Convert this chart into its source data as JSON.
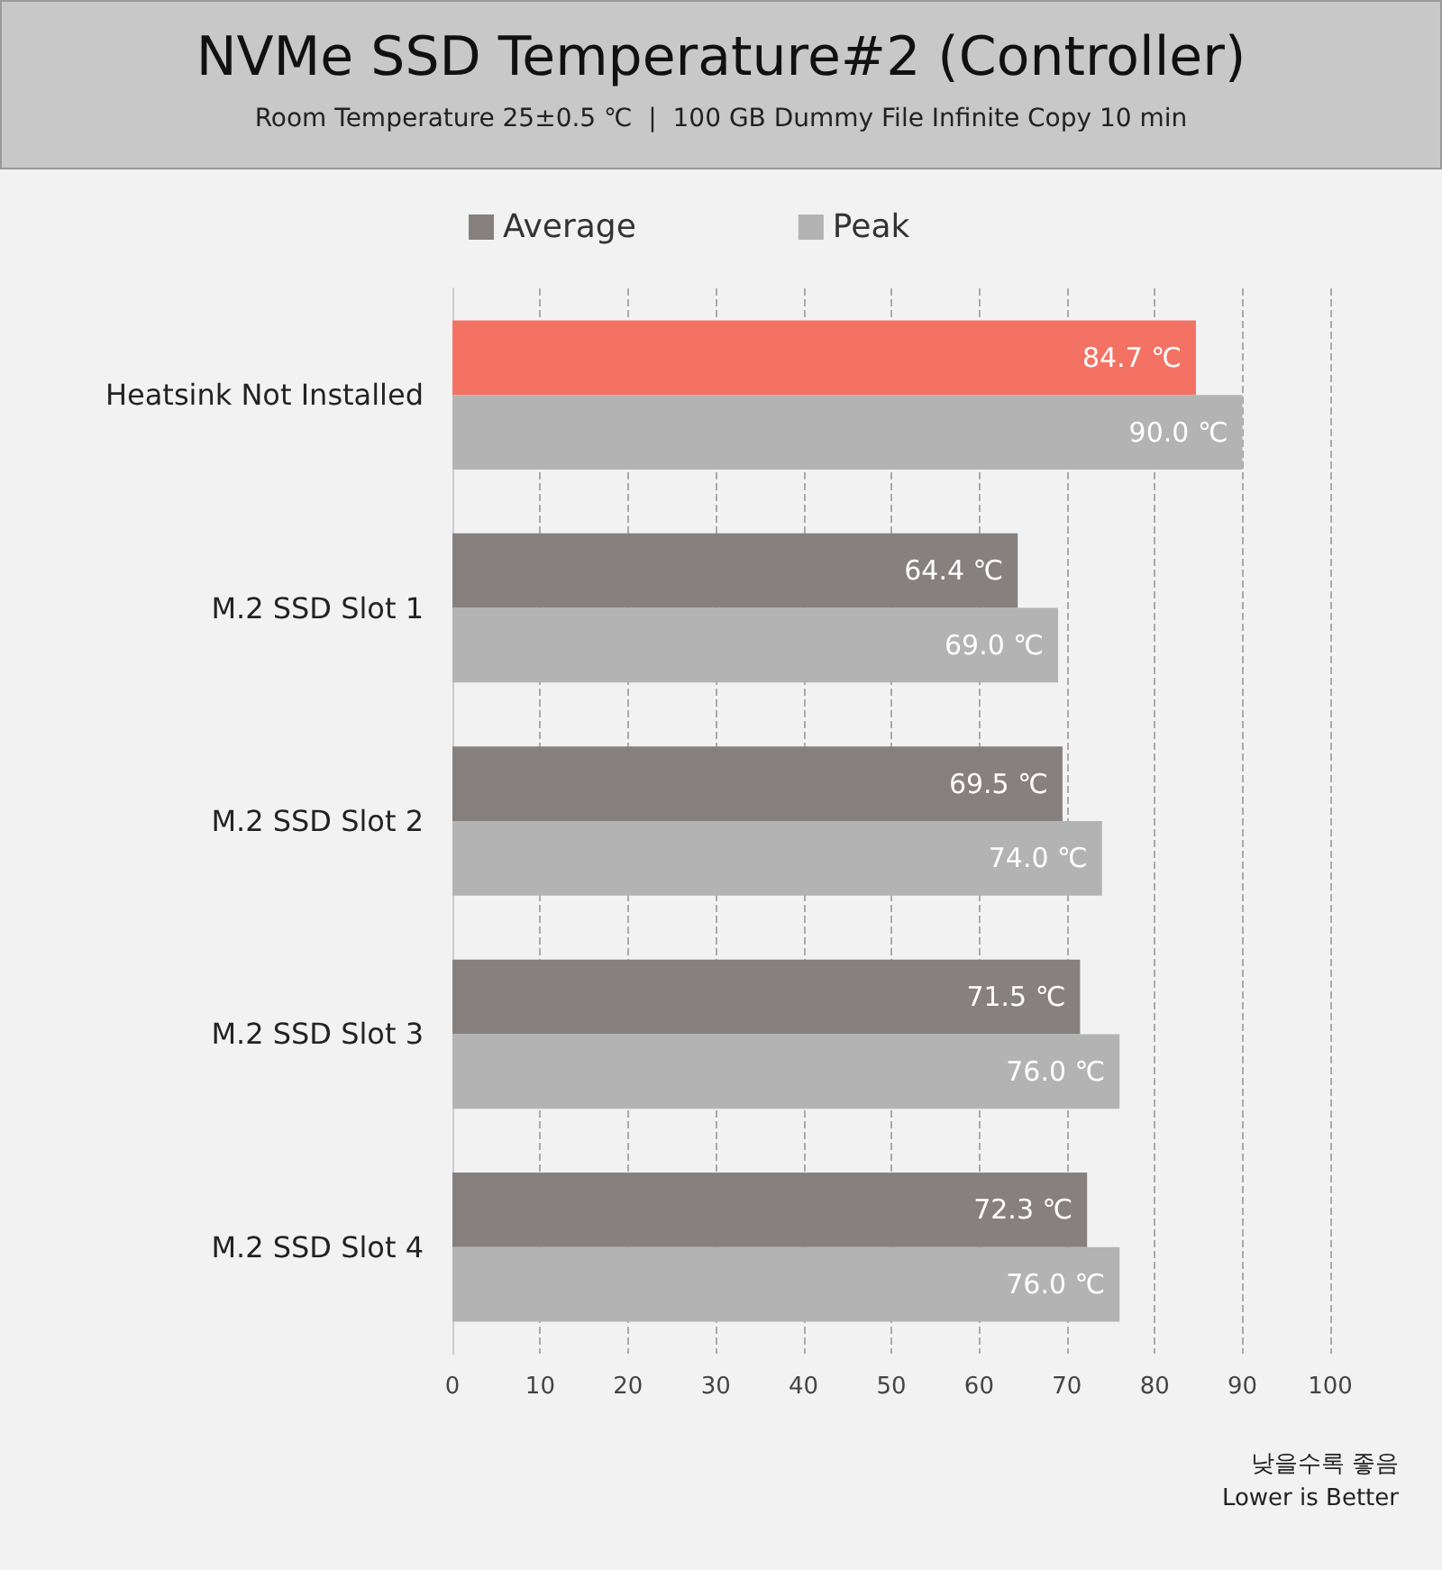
{
  "chart_data": {
    "type": "bar",
    "orientation": "horizontal",
    "title": "NVMe SSD Temperature#2 (Controller)",
    "subtitle": "Room Temperature 25±0.5 ℃  |  100 GB Dummy File Infinite Copy 10 min",
    "categories": [
      "Heatsink Not Installed",
      "M.2 SSD Slot 1",
      "M.2 SSD Slot 2",
      "M.2 SSD Slot 3",
      "M.2 SSD Slot 4"
    ],
    "series": [
      {
        "name": "Average",
        "color": "#86807e",
        "colors": [
          "#f47264",
          "#86807e",
          "#86807e",
          "#86807e",
          "#86807e"
        ],
        "values": [
          84.7,
          64.4,
          69.5,
          71.5,
          72.3
        ],
        "value_labels": [
          "84.7 ℃",
          "64.4 ℃",
          "69.5 ℃",
          "71.5 ℃",
          "72.3 ℃"
        ]
      },
      {
        "name": "Peak",
        "color": "#b3b3b3",
        "values": [
          90.0,
          69.0,
          74.0,
          76.0,
          76.0
        ],
        "value_labels": [
          "90.0 ℃",
          "69.0 ℃",
          "74.0 ℃",
          "76.0 ℃",
          "76.0 ℃"
        ]
      }
    ],
    "xlim": [
      0,
      100
    ],
    "xticks": [
      0,
      10,
      20,
      30,
      40,
      50,
      60,
      70,
      80,
      90,
      100
    ],
    "grid": "x",
    "legend": "top",
    "annotations": [
      "낮을수록 좋음",
      "Lower is Better"
    ]
  }
}
